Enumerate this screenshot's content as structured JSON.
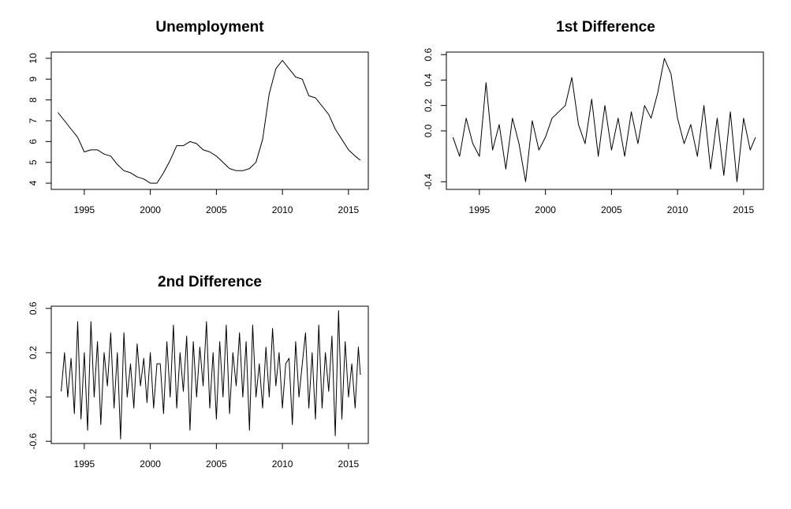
{
  "chart_data": [
    {
      "type": "line",
      "title": "Unemployment",
      "xlabel": "",
      "ylabel": "",
      "xlim": [
        1992.5,
        2016.5
      ],
      "ylim": [
        3.7,
        10.3
      ],
      "x_ticks": [
        1995,
        2000,
        2005,
        2010,
        2015
      ],
      "x_tick_labels": [
        "1995",
        "2000",
        "2005",
        "2010",
        "2015"
      ],
      "y_ticks": [
        4,
        5,
        6,
        7,
        8,
        9,
        10
      ],
      "y_tick_labels": [
        "4",
        "5",
        "6",
        "7",
        "8",
        "9",
        "10"
      ],
      "grid": false,
      "x": [
        1993.0,
        1993.5,
        1994.0,
        1994.5,
        1995.0,
        1995.5,
        1996.0,
        1996.5,
        1997.0,
        1997.5,
        1998.0,
        1998.5,
        1999.0,
        1999.5,
        2000.0,
        2000.5,
        2001.0,
        2001.5,
        2002.0,
        2002.5,
        2003.0,
        2003.5,
        2004.0,
        2004.5,
        2005.0,
        2005.5,
        2006.0,
        2006.5,
        2007.0,
        2007.5,
        2008.0,
        2008.5,
        2009.0,
        2009.5,
        2010.0,
        2010.5,
        2011.0,
        2011.5,
        2012.0,
        2012.5,
        2013.0,
        2013.5,
        2014.0,
        2014.5,
        2015.0,
        2015.5,
        2015.9
      ],
      "values": [
        7.4,
        7.0,
        6.6,
        6.2,
        5.5,
        5.6,
        5.6,
        5.4,
        5.3,
        4.9,
        4.6,
        4.5,
        4.3,
        4.2,
        4.0,
        4.0,
        4.5,
        5.1,
        5.8,
        5.8,
        6.0,
        5.9,
        5.6,
        5.5,
        5.3,
        5.0,
        4.7,
        4.6,
        4.6,
        4.7,
        5.0,
        6.1,
        8.3,
        9.5,
        9.9,
        9.5,
        9.1,
        9.0,
        8.2,
        8.1,
        7.7,
        7.3,
        6.6,
        6.1,
        5.6,
        5.3,
        5.1
      ]
    },
    {
      "type": "line",
      "title": "1st Difference",
      "xlabel": "",
      "ylabel": "",
      "xlim": [
        1992.5,
        2016.5
      ],
      "ylim": [
        -0.46,
        0.62
      ],
      "x_ticks": [
        1995,
        2000,
        2005,
        2010,
        2015
      ],
      "x_tick_labels": [
        "1995",
        "2000",
        "2005",
        "2010",
        "2015"
      ],
      "y_ticks": [
        -0.4,
        0.0,
        0.2,
        0.4,
        0.6
      ],
      "y_tick_labels": [
        "-0.4",
        "0.0",
        "0.2",
        "0.4",
        "0.6"
      ],
      "grid": false,
      "x": [
        1993.0,
        1993.5,
        1994.0,
        1994.5,
        1995.0,
        1995.5,
        1996.0,
        1996.5,
        1997.0,
        1997.5,
        1998.0,
        1998.5,
        1999.0,
        1999.5,
        2000.0,
        2000.5,
        2001.0,
        2001.5,
        2002.0,
        2002.5,
        2003.0,
        2003.5,
        2004.0,
        2004.5,
        2005.0,
        2005.5,
        2006.0,
        2006.5,
        2007.0,
        2007.5,
        2008.0,
        2008.5,
        2009.0,
        2009.5,
        2010.0,
        2010.5,
        2011.0,
        2011.5,
        2012.0,
        2012.5,
        2013.0,
        2013.5,
        2014.0,
        2014.5,
        2015.0,
        2015.5,
        2015.9
      ],
      "values": [
        -0.05,
        -0.2,
        0.1,
        -0.1,
        -0.2,
        0.38,
        -0.15,
        0.05,
        -0.3,
        0.1,
        -0.1,
        -0.4,
        0.08,
        -0.15,
        -0.05,
        0.1,
        0.15,
        0.2,
        0.42,
        0.05,
        -0.1,
        0.25,
        -0.2,
        0.2,
        -0.15,
        0.1,
        -0.2,
        0.15,
        -0.1,
        0.2,
        0.1,
        0.3,
        0.57,
        0.45,
        0.1,
        -0.1,
        0.05,
        -0.2,
        0.2,
        -0.3,
        0.1,
        -0.35,
        0.15,
        -0.4,
        0.1,
        -0.15,
        -0.05
      ]
    },
    {
      "type": "line",
      "title": "2nd Difference",
      "xlabel": "",
      "ylabel": "",
      "xlim": [
        1992.5,
        2016.5
      ],
      "ylim": [
        -0.62,
        0.62
      ],
      "x_ticks": [
        1995,
        2000,
        2005,
        2010,
        2015
      ],
      "x_tick_labels": [
        "1995",
        "2000",
        "2005",
        "2010",
        "2015"
      ],
      "y_ticks": [
        -0.6,
        -0.2,
        0.2,
        0.6
      ],
      "y_tick_labels": [
        "-0.6",
        "-0.2",
        "0.2",
        "0.6"
      ],
      "grid": false,
      "x": [
        1993.25,
        1993.5,
        1993.75,
        1994.0,
        1994.25,
        1994.5,
        1994.75,
        1995.0,
        1995.25,
        1995.5,
        1995.75,
        1996.0,
        1996.25,
        1996.5,
        1996.75,
        1997.0,
        1997.25,
        1997.5,
        1997.75,
        1998.0,
        1998.25,
        1998.5,
        1998.75,
        1999.0,
        1999.25,
        1999.5,
        1999.75,
        2000.0,
        2000.25,
        2000.5,
        2000.75,
        2001.0,
        2001.25,
        2001.5,
        2001.75,
        2002.0,
        2002.25,
        2002.5,
        2002.75,
        2003.0,
        2003.25,
        2003.5,
        2003.75,
        2004.0,
        2004.25,
        2004.5,
        2004.75,
        2005.0,
        2005.25,
        2005.5,
        2005.75,
        2006.0,
        2006.25,
        2006.5,
        2006.75,
        2007.0,
        2007.25,
        2007.5,
        2007.75,
        2008.0,
        2008.25,
        2008.5,
        2008.75,
        2009.0,
        2009.25,
        2009.5,
        2009.75,
        2010.0,
        2010.25,
        2010.5,
        2010.75,
        2011.0,
        2011.25,
        2011.5,
        2011.75,
        2012.0,
        2012.25,
        2012.5,
        2012.75,
        2013.0,
        2013.25,
        2013.5,
        2013.75,
        2014.0,
        2014.25,
        2014.5,
        2014.75,
        2015.0,
        2015.25,
        2015.5,
        2015.75,
        2015.9
      ],
      "values": [
        -0.15,
        0.2,
        -0.2,
        0.15,
        -0.35,
        0.48,
        -0.4,
        0.2,
        -0.5,
        0.48,
        -0.2,
        0.3,
        -0.45,
        0.2,
        -0.1,
        0.38,
        -0.3,
        0.2,
        -0.58,
        0.38,
        -0.2,
        0.1,
        -0.3,
        0.28,
        -0.1,
        0.15,
        -0.25,
        0.2,
        -0.3,
        0.1,
        0.1,
        -0.35,
        0.3,
        -0.2,
        0.45,
        -0.3,
        0.2,
        -0.15,
        0.35,
        -0.5,
        0.3,
        -0.2,
        0.25,
        -0.1,
        0.48,
        -0.3,
        0.2,
        -0.4,
        0.3,
        -0.2,
        0.45,
        -0.35,
        0.2,
        -0.1,
        0.38,
        -0.2,
        0.3,
        -0.5,
        0.45,
        -0.2,
        0.1,
        -0.3,
        0.25,
        -0.2,
        0.42,
        -0.1,
        0.2,
        -0.3,
        0.1,
        0.15,
        -0.45,
        0.3,
        -0.2,
        0.1,
        0.38,
        -0.3,
        0.2,
        -0.4,
        0.45,
        -0.3,
        0.2,
        -0.15,
        0.35,
        -0.55,
        0.58,
        -0.4,
        0.3,
        -0.2,
        0.1,
        -0.3,
        0.25,
        0.0
      ]
    }
  ]
}
